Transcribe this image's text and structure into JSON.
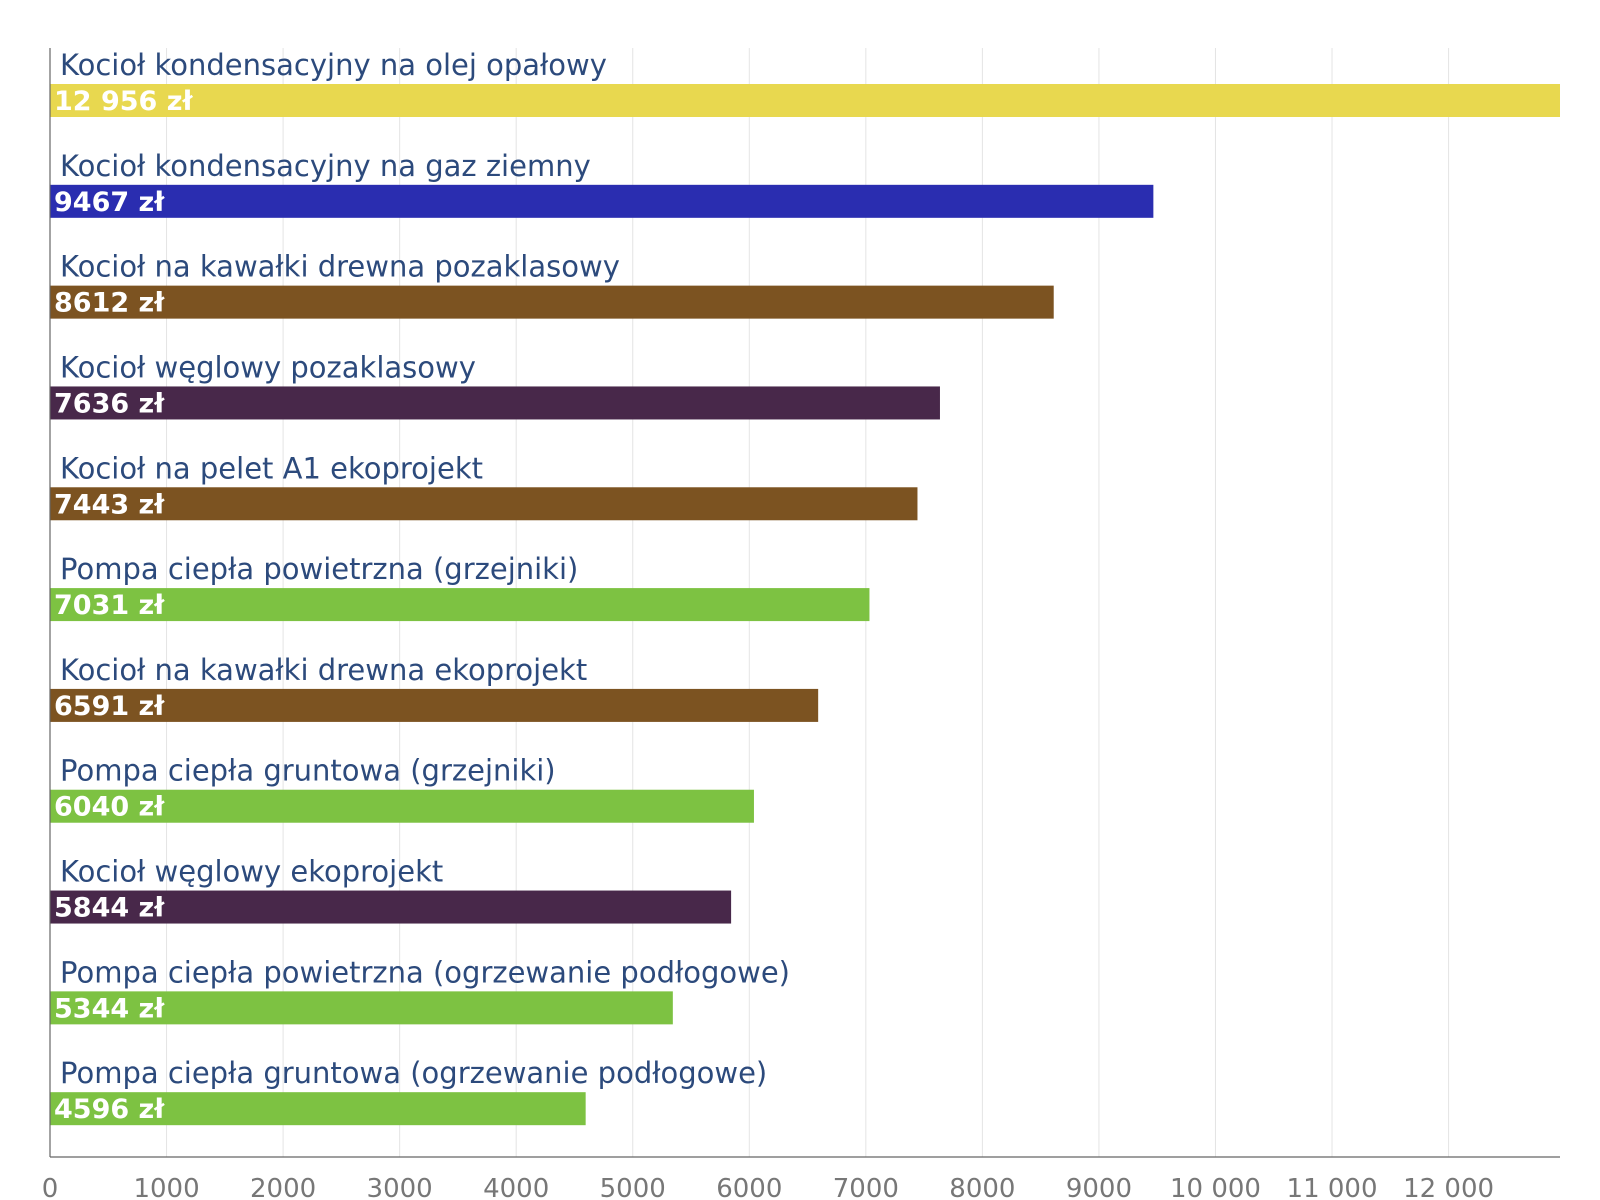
{
  "chart_data": {
    "type": "bar",
    "orientation": "horizontal",
    "title": "",
    "xlabel": "",
    "ylabel": "",
    "xlim": [
      0,
      12956
    ],
    "grid": true,
    "legend": "none",
    "x_ticks": [
      0,
      1000,
      2000,
      3000,
      4000,
      5000,
      6000,
      7000,
      8000,
      9000,
      10000,
      11000,
      12000
    ],
    "x_tick_labels": [
      "0",
      "1000",
      "2000",
      "3000",
      "4000",
      "5000",
      "6000",
      "7000",
      "8000",
      "9000",
      "10 000",
      "11 000",
      "12 000"
    ],
    "categories": [
      "Kocioł kondensacyjny na olej opałowy",
      "Kocioł kondensacyjny na gaz ziemny",
      "Kocioł na kawałki drewna pozaklasowy",
      "Kocioł węglowy pozaklasowy",
      "Kocioł na pelet A1 ekoprojekt",
      "Pompa ciepła powietrzna (grzejniki)",
      "Kocioł na kawałki drewna ekoprojekt",
      "Pompa ciepła gruntowa (grzejniki)",
      "Kocioł węglowy ekoprojekt",
      "Pompa ciepła powietrzna (ogrzewanie podłogowe)",
      "Pompa ciepła gruntowa (ogrzewanie podłogowe)"
    ],
    "values": [
      12956,
      9467,
      8612,
      7636,
      7443,
      7031,
      6591,
      6040,
      5844,
      5344,
      4596
    ],
    "value_labels": [
      "12 956 zł",
      "9467 zł",
      "8612 zł",
      "7636 zł",
      "7443 zł",
      "7031 zł",
      "6591 zł",
      "6040 zł",
      "5844 zł",
      "5344 zł",
      "4596 zł"
    ],
    "colors": [
      "#e8d84f",
      "#2a2db0",
      "#7c5321",
      "#48284a",
      "#7c5321",
      "#7dc242",
      "#7c5321",
      "#7dc242",
      "#48284a",
      "#7dc242",
      "#7dc242"
    ]
  }
}
